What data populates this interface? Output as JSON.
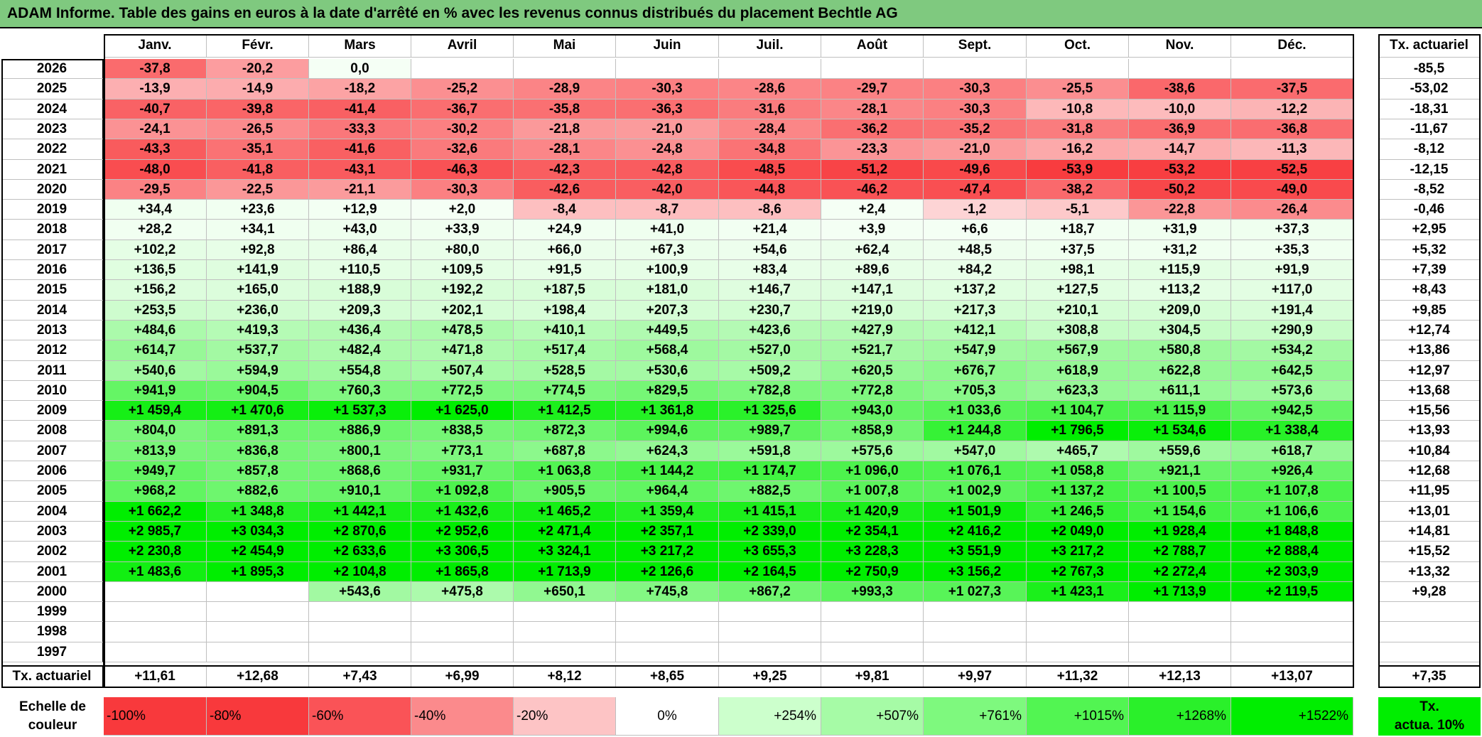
{
  "title": "ADAM Informe. Table des gains en euros à la date d'arrêté en % avec les revenus connus distribués du placement Bechtle AG",
  "chart_data": {
    "type": "heatmap",
    "columns": [
      "Janv.",
      "Févr.",
      "Mars",
      "Avril",
      "Mai",
      "Juin",
      "Juil.",
      "Août",
      "Sept.",
      "Oct.",
      "Nov.",
      "Déc."
    ],
    "side_column_header": "Tx. actuariel",
    "rows": [
      {
        "year": "2026",
        "values": [
          "-37,8",
          "-20,2",
          "0,0",
          "",
          "",
          "",
          "",
          "",
          "",
          "",
          "",
          ""
        ],
        "num": [
          -37.8,
          -20.2,
          0,
          null,
          null,
          null,
          null,
          null,
          null,
          null,
          null,
          null
        ],
        "rate": "-85,5"
      },
      {
        "year": "2025",
        "values": [
          "-13,9",
          "-14,9",
          "-18,2",
          "-25,2",
          "-28,9",
          "-30,3",
          "-28,6",
          "-29,7",
          "-30,3",
          "-25,5",
          "-38,6",
          "-37,5"
        ],
        "num": [
          -13.9,
          -14.9,
          -18.2,
          -25.2,
          -28.9,
          -30.3,
          -28.6,
          -29.7,
          -30.3,
          -25.5,
          -38.6,
          -37.5
        ],
        "rate": "-53,02"
      },
      {
        "year": "2024",
        "values": [
          "-40,7",
          "-39,8",
          "-41,4",
          "-36,7",
          "-35,8",
          "-36,3",
          "-31,6",
          "-28,1",
          "-30,3",
          "-10,8",
          "-10,0",
          "-12,2"
        ],
        "num": [
          -40.7,
          -39.8,
          -41.4,
          -36.7,
          -35.8,
          -36.3,
          -31.6,
          -28.1,
          -30.3,
          -10.8,
          -10.0,
          -12.2
        ],
        "rate": "-18,31"
      },
      {
        "year": "2023",
        "values": [
          "-24,1",
          "-26,5",
          "-33,3",
          "-30,2",
          "-21,8",
          "-21,0",
          "-28,4",
          "-36,2",
          "-35,2",
          "-31,8",
          "-36,9",
          "-36,8"
        ],
        "num": [
          -24.1,
          -26.5,
          -33.3,
          -30.2,
          -21.8,
          -21.0,
          -28.4,
          -36.2,
          -35.2,
          -31.8,
          -36.9,
          -36.8
        ],
        "rate": "-11,67"
      },
      {
        "year": "2022",
        "values": [
          "-43,3",
          "-35,1",
          "-41,6",
          "-32,6",
          "-28,1",
          "-24,8",
          "-34,8",
          "-23,3",
          "-21,0",
          "-16,2",
          "-14,7",
          "-11,3"
        ],
        "num": [
          -43.3,
          -35.1,
          -41.6,
          -32.6,
          -28.1,
          -24.8,
          -34.8,
          -23.3,
          -21.0,
          -16.2,
          -14.7,
          -11.3
        ],
        "rate": "-8,12"
      },
      {
        "year": "2021",
        "values": [
          "-48,0",
          "-41,8",
          "-43,1",
          "-46,3",
          "-42,3",
          "-42,8",
          "-48,5",
          "-51,2",
          "-49,6",
          "-53,9",
          "-53,2",
          "-52,5"
        ],
        "num": [
          -48.0,
          -41.8,
          -43.1,
          -46.3,
          -42.3,
          -42.8,
          -48.5,
          -51.2,
          -49.6,
          -53.9,
          -53.2,
          -52.5
        ],
        "rate": "-12,15"
      },
      {
        "year": "2020",
        "values": [
          "-29,5",
          "-22,5",
          "-21,1",
          "-30,3",
          "-42,6",
          "-42,0",
          "-44,8",
          "-46,2",
          "-47,4",
          "-38,2",
          "-50,2",
          "-49,0"
        ],
        "num": [
          -29.5,
          -22.5,
          -21.1,
          -30.3,
          -42.6,
          -42.0,
          -44.8,
          -46.2,
          -47.4,
          -38.2,
          -50.2,
          -49.0
        ],
        "rate": "-8,52"
      },
      {
        "year": "2019",
        "values": [
          "+34,4",
          "+23,6",
          "+12,9",
          "+2,0",
          "-8,4",
          "-8,7",
          "-8,6",
          "+2,4",
          "-1,2",
          "-5,1",
          "-22,8",
          "-26,4"
        ],
        "num": [
          34.4,
          23.6,
          12.9,
          2.0,
          -8.4,
          -8.7,
          -8.6,
          2.4,
          -1.2,
          -5.1,
          -22.8,
          -26.4
        ],
        "rate": "-0,46"
      },
      {
        "year": "2018",
        "values": [
          "+28,2",
          "+34,1",
          "+43,0",
          "+33,9",
          "+24,9",
          "+41,0",
          "+21,4",
          "+3,9",
          "+6,6",
          "+18,7",
          "+31,9",
          "+37,3"
        ],
        "num": [
          28.2,
          34.1,
          43.0,
          33.9,
          24.9,
          41.0,
          21.4,
          3.9,
          6.6,
          18.7,
          31.9,
          37.3
        ],
        "rate": "+2,95"
      },
      {
        "year": "2017",
        "values": [
          "+102,2",
          "+92,8",
          "+86,4",
          "+80,0",
          "+66,0",
          "+67,3",
          "+54,6",
          "+62,4",
          "+48,5",
          "+37,5",
          "+31,2",
          "+35,3"
        ],
        "num": [
          102.2,
          92.8,
          86.4,
          80.0,
          66.0,
          67.3,
          54.6,
          62.4,
          48.5,
          37.5,
          31.2,
          35.3
        ],
        "rate": "+5,32"
      },
      {
        "year": "2016",
        "values": [
          "+136,5",
          "+141,9",
          "+110,5",
          "+109,5",
          "+91,5",
          "+100,9",
          "+83,4",
          "+89,6",
          "+84,2",
          "+98,1",
          "+115,9",
          "+91,9"
        ],
        "num": [
          136.5,
          141.9,
          110.5,
          109.5,
          91.5,
          100.9,
          83.4,
          89.6,
          84.2,
          98.1,
          115.9,
          91.9
        ],
        "rate": "+7,39"
      },
      {
        "year": "2015",
        "values": [
          "+156,2",
          "+165,0",
          "+188,9",
          "+192,2",
          "+187,5",
          "+181,0",
          "+146,7",
          "+147,1",
          "+137,2",
          "+127,5",
          "+113,2",
          "+117,0"
        ],
        "num": [
          156.2,
          165.0,
          188.9,
          192.2,
          187.5,
          181.0,
          146.7,
          147.1,
          137.2,
          127.5,
          113.2,
          117.0
        ],
        "rate": "+8,43"
      },
      {
        "year": "2014",
        "values": [
          "+253,5",
          "+236,0",
          "+209,3",
          "+202,1",
          "+198,4",
          "+207,3",
          "+230,7",
          "+219,0",
          "+217,3",
          "+210,1",
          "+209,0",
          "+191,4"
        ],
        "num": [
          253.5,
          236.0,
          209.3,
          202.1,
          198.4,
          207.3,
          230.7,
          219.0,
          217.3,
          210.1,
          209.0,
          191.4
        ],
        "rate": "+9,85"
      },
      {
        "year": "2013",
        "values": [
          "+484,6",
          "+419,3",
          "+436,4",
          "+478,5",
          "+410,1",
          "+449,5",
          "+423,6",
          "+427,9",
          "+412,1",
          "+308,8",
          "+304,5",
          "+290,9"
        ],
        "num": [
          484.6,
          419.3,
          436.4,
          478.5,
          410.1,
          449.5,
          423.6,
          427.9,
          412.1,
          308.8,
          304.5,
          290.9
        ],
        "rate": "+12,74"
      },
      {
        "year": "2012",
        "values": [
          "+614,7",
          "+537,7",
          "+482,4",
          "+471,8",
          "+517,4",
          "+568,4",
          "+527,0",
          "+521,7",
          "+547,9",
          "+567,9",
          "+580,8",
          "+534,2"
        ],
        "num": [
          614.7,
          537.7,
          482.4,
          471.8,
          517.4,
          568.4,
          527.0,
          521.7,
          547.9,
          567.9,
          580.8,
          534.2
        ],
        "rate": "+13,86"
      },
      {
        "year": "2011",
        "values": [
          "+540,6",
          "+594,9",
          "+554,8",
          "+507,4",
          "+528,5",
          "+530,6",
          "+509,2",
          "+620,5",
          "+676,7",
          "+618,9",
          "+622,8",
          "+642,5"
        ],
        "num": [
          540.6,
          594.9,
          554.8,
          507.4,
          528.5,
          530.6,
          509.2,
          620.5,
          676.7,
          618.9,
          622.8,
          642.5
        ],
        "rate": "+12,97"
      },
      {
        "year": "2010",
        "values": [
          "+941,9",
          "+904,5",
          "+760,3",
          "+772,5",
          "+774,5",
          "+829,5",
          "+782,8",
          "+772,8",
          "+705,3",
          "+623,3",
          "+611,1",
          "+573,6"
        ],
        "num": [
          941.9,
          904.5,
          760.3,
          772.5,
          774.5,
          829.5,
          782.8,
          772.8,
          705.3,
          623.3,
          611.1,
          573.6
        ],
        "rate": "+13,68"
      },
      {
        "year": "2009",
        "values": [
          "+1 459,4",
          "+1 470,6",
          "+1 537,3",
          "+1 625,0",
          "+1 412,5",
          "+1 361,8",
          "+1 325,6",
          "+943,0",
          "+1 033,6",
          "+1 104,7",
          "+1 115,9",
          "+942,5"
        ],
        "num": [
          1459.4,
          1470.6,
          1537.3,
          1625.0,
          1412.5,
          1361.8,
          1325.6,
          943.0,
          1033.6,
          1104.7,
          1115.9,
          942.5
        ],
        "rate": "+15,56"
      },
      {
        "year": "2008",
        "values": [
          "+804,0",
          "+891,3",
          "+886,9",
          "+838,5",
          "+872,3",
          "+994,6",
          "+989,7",
          "+858,9",
          "+1 244,8",
          "+1 796,5",
          "+1 534,6",
          "+1 338,4"
        ],
        "num": [
          804.0,
          891.3,
          886.9,
          838.5,
          872.3,
          994.6,
          989.7,
          858.9,
          1244.8,
          1796.5,
          1534.6,
          1338.4
        ],
        "rate": "+13,93"
      },
      {
        "year": "2007",
        "values": [
          "+813,9",
          "+836,8",
          "+800,1",
          "+773,1",
          "+687,8",
          "+624,3",
          "+591,8",
          "+575,6",
          "+547,0",
          "+465,7",
          "+559,6",
          "+618,7"
        ],
        "num": [
          813.9,
          836.8,
          800.1,
          773.1,
          687.8,
          624.3,
          591.8,
          575.6,
          547.0,
          465.7,
          559.6,
          618.7
        ],
        "rate": "+10,84"
      },
      {
        "year": "2006",
        "values": [
          "+949,7",
          "+857,8",
          "+868,6",
          "+931,7",
          "+1 063,8",
          "+1 144,2",
          "+1 174,7",
          "+1 096,0",
          "+1 076,1",
          "+1 058,8",
          "+921,1",
          "+926,4"
        ],
        "num": [
          949.7,
          857.8,
          868.6,
          931.7,
          1063.8,
          1144.2,
          1174.7,
          1096.0,
          1076.1,
          1058.8,
          921.1,
          926.4
        ],
        "rate": "+12,68"
      },
      {
        "year": "2005",
        "values": [
          "+968,2",
          "+882,6",
          "+910,1",
          "+1 092,8",
          "+905,5",
          "+964,4",
          "+882,5",
          "+1 007,8",
          "+1 002,9",
          "+1 137,2",
          "+1 100,5",
          "+1 107,8"
        ],
        "num": [
          968.2,
          882.6,
          910.1,
          1092.8,
          905.5,
          964.4,
          882.5,
          1007.8,
          1002.9,
          1137.2,
          1100.5,
          1107.8
        ],
        "rate": "+11,95"
      },
      {
        "year": "2004",
        "values": [
          "+1 662,2",
          "+1 348,8",
          "+1 442,1",
          "+1 432,6",
          "+1 465,2",
          "+1 359,4",
          "+1 415,1",
          "+1 420,9",
          "+1 501,9",
          "+1 246,5",
          "+1 154,6",
          "+1 106,6"
        ],
        "num": [
          1662.2,
          1348.8,
          1442.1,
          1432.6,
          1465.2,
          1359.4,
          1415.1,
          1420.9,
          1501.9,
          1246.5,
          1154.6,
          1106.6
        ],
        "rate": "+13,01"
      },
      {
        "year": "2003",
        "values": [
          "+2 985,7",
          "+3 034,3",
          "+2 870,6",
          "+2 952,6",
          "+2 471,4",
          "+2 357,1",
          "+2 339,0",
          "+2 354,1",
          "+2 416,2",
          "+2 049,0",
          "+1 928,4",
          "+1 848,8"
        ],
        "num": [
          2985.7,
          3034.3,
          2870.6,
          2952.6,
          2471.4,
          2357.1,
          2339.0,
          2354.1,
          2416.2,
          2049.0,
          1928.4,
          1848.8
        ],
        "rate": "+14,81"
      },
      {
        "year": "2002",
        "values": [
          "+2 230,8",
          "+2 454,9",
          "+2 633,6",
          "+3 306,5",
          "+3 324,1",
          "+3 217,2",
          "+3 655,3",
          "+3 228,3",
          "+3 551,9",
          "+3 217,2",
          "+2 788,7",
          "+2 888,4"
        ],
        "num": [
          2230.8,
          2454.9,
          2633.6,
          3306.5,
          3324.1,
          3217.2,
          3655.3,
          3228.3,
          3551.9,
          3217.2,
          2788.7,
          2888.4
        ],
        "rate": "+15,52"
      },
      {
        "year": "2001",
        "values": [
          "+1 483,6",
          "+1 895,3",
          "+2 104,8",
          "+1 865,8",
          "+1 713,9",
          "+2 126,6",
          "+2 164,5",
          "+2 750,9",
          "+3 156,2",
          "+2 767,3",
          "+2 272,4",
          "+2 303,9"
        ],
        "num": [
          1483.6,
          1895.3,
          2104.8,
          1865.8,
          1713.9,
          2126.6,
          2164.5,
          2750.9,
          3156.2,
          2767.3,
          2272.4,
          2303.9
        ],
        "rate": "+13,32"
      },
      {
        "year": "2000",
        "values": [
          "",
          "",
          "+543,6",
          "+475,8",
          "+650,1",
          "+745,8",
          "+867,2",
          "+993,3",
          "+1 027,3",
          "+1 423,1",
          "+1 713,9",
          "+2 119,5"
        ],
        "num": [
          null,
          null,
          543.6,
          475.8,
          650.1,
          745.8,
          867.2,
          993.3,
          1027.3,
          1423.1,
          1713.9,
          2119.5
        ],
        "rate": "+9,28"
      },
      {
        "year": "1999",
        "values": [
          "",
          "",
          "",
          "",
          "",
          "",
          "",
          "",
          "",
          "",
          "",
          ""
        ],
        "num": [
          null,
          null,
          null,
          null,
          null,
          null,
          null,
          null,
          null,
          null,
          null,
          null
        ],
        "rate": ""
      },
      {
        "year": "1998",
        "values": [
          "",
          "",
          "",
          "",
          "",
          "",
          "",
          "",
          "",
          "",
          "",
          ""
        ],
        "num": [
          null,
          null,
          null,
          null,
          null,
          null,
          null,
          null,
          null,
          null,
          null,
          null
        ],
        "rate": ""
      },
      {
        "year": "1997",
        "values": [
          "",
          "",
          "",
          "",
          "",
          "",
          "",
          "",
          "",
          "",
          "",
          ""
        ],
        "num": [
          null,
          null,
          null,
          null,
          null,
          null,
          null,
          null,
          null,
          null,
          null,
          null
        ],
        "rate": ""
      }
    ],
    "footer": {
      "label": "Tx. actuariel",
      "values": [
        "+11,61",
        "+12,68",
        "+7,43",
        "+6,99",
        "+8,12",
        "+8,65",
        "+9,25",
        "+9,81",
        "+9,97",
        "+11,32",
        "+12,13",
        "+13,07"
      ],
      "overall": "+7,35"
    },
    "legend": {
      "label_line1": "Echelle de",
      "label_line2": "couleur",
      "items": [
        {
          "label": "-100%",
          "color": "#f8393c"
        },
        {
          "label": "-80%",
          "color": "#f8393c"
        },
        {
          "label": "-60%",
          "color": "#fa5357"
        },
        {
          "label": "-40%",
          "color": "#fb8a8c"
        },
        {
          "label": "-20%",
          "color": "#fdc4c5"
        },
        {
          "label": "0%",
          "color": "#ffffff"
        },
        {
          "label": "+254%",
          "color": "#ccffcc"
        },
        {
          "label": "+507%",
          "color": "#a6fba6"
        },
        {
          "label": "+761%",
          "color": "#7ef97e"
        },
        {
          "label": "+1015%",
          "color": "#52f552"
        },
        {
          "label": "+1268%",
          "color": "#2af02a"
        },
        {
          "label": "+1522%",
          "color": "#00ee00"
        }
      ],
      "side_line1": "Tx.",
      "side_line2": "actua. 10%",
      "side_color": "#00ee00"
    },
    "colors": {
      "title_bg": "#7fc97f",
      "negative_max": "#f8393c",
      "positive_max": "#00ee00"
    }
  }
}
